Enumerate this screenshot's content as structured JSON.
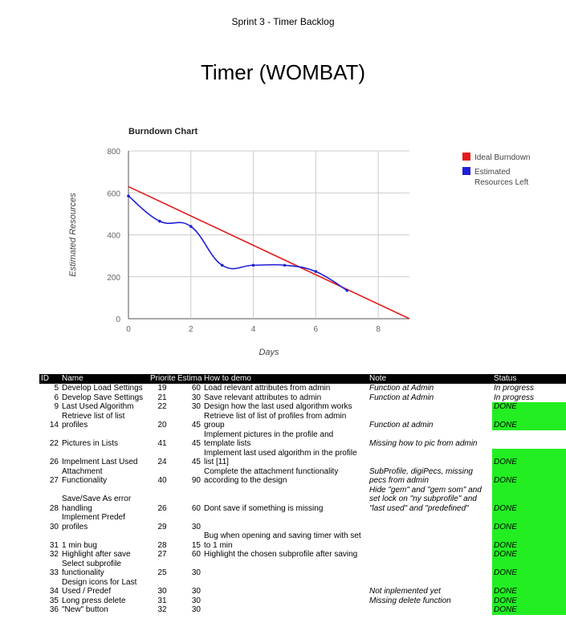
{
  "header": {
    "sheet_title": "Sprint 3 - Timer Backlog",
    "project_title": "Timer (WOMBAT)"
  },
  "chart_data": {
    "type": "line",
    "title": "Burndown Chart",
    "xlabel": "Days",
    "ylabel": "Estimated Resources",
    "xlim": [
      0,
      9
    ],
    "ylim": [
      0,
      800
    ],
    "x_ticks": [
      0,
      2,
      4,
      6,
      8
    ],
    "y_ticks": [
      0,
      200,
      400,
      600,
      800
    ],
    "grid": true,
    "legend_position": "right",
    "series": [
      {
        "name": "Ideal Burndown",
        "color": "#e31a1c",
        "x": [
          0,
          9
        ],
        "values": [
          630,
          0
        ]
      },
      {
        "name": "Estimated Resources Left",
        "color": "#1f1fd6",
        "x": [
          0,
          1,
          2,
          3,
          4,
          5,
          6,
          7
        ],
        "values": [
          585,
          465,
          440,
          255,
          255,
          255,
          225,
          135
        ]
      }
    ]
  },
  "table": {
    "columns": [
      "ID",
      "Name",
      "Priorite",
      "Estima",
      "How to demo",
      "Note",
      "Status"
    ],
    "rows": [
      {
        "id": "5",
        "name": "Develop Load Settings",
        "priority": "19",
        "estimate": "60",
        "how_to_demo": "Load relevant attributes from admin",
        "note": "Function at Admin",
        "status": "In progress",
        "done": false
      },
      {
        "id": "6",
        "name": "Develop Save Settings",
        "priority": "21",
        "estimate": "30",
        "how_to_demo": "Save relevant attributes to admin",
        "note": "Function at Admin",
        "status": "In progress",
        "done": false
      },
      {
        "id": "9",
        "name": "Last Used Algorithm",
        "priority": "22",
        "estimate": "30",
        "how_to_demo": "Design how the last used algorithm works",
        "note": "",
        "status": "DONE",
        "done": true
      },
      {
        "id": "14",
        "name": "Retrieve list of list\nprofiles",
        "priority": "20",
        "estimate": "45",
        "how_to_demo": "Retrieve list of list of profiles from admin\ngroup",
        "note": "Function at admin",
        "status": "DONE",
        "done": true
      },
      {
        "id": "22",
        "name": "Pictures in Lists",
        "priority": "41",
        "estimate": "45",
        "how_to_demo": "Implement pictures in the profile and\ntemplate lists",
        "note": "Missing how to pic from admin",
        "status": "",
        "done": false
      },
      {
        "id": "26",
        "name": "Impelment Last Used",
        "priority": "24",
        "estimate": "45",
        "how_to_demo": "Implement last used algorithm in the profile\nlist [11]",
        "note": "",
        "status": "DONE",
        "done": true
      },
      {
        "id": "27",
        "name": "Attachment\nFunctionality",
        "priority": "40",
        "estimate": "90",
        "how_to_demo": "Complete the attachment functionality\naccording to the design",
        "note": "SubProfile, digiPecs, missing\npecs from admin",
        "status": "DONE",
        "done": true
      },
      {
        "id": "28",
        "name": "Save/Save As error\nhandling",
        "priority": "26",
        "estimate": "60",
        "how_to_demo": "Dont save if something is missing",
        "note": "Hide \"gem\" and \"gem som\" and\nset lock on \"ny subprofile\" and\n\"last used\" and \"predefined\"",
        "status": "DONE",
        "done": true
      },
      {
        "id": "30",
        "name": "Implement Predef\nprofiles",
        "priority": "29",
        "estimate": "30",
        "how_to_demo": "",
        "note": "",
        "status": "DONE",
        "done": true
      },
      {
        "id": "31",
        "name": "1 min bug",
        "priority": "28",
        "estimate": "15",
        "how_to_demo": "Bug when opening and saving timer with set\nto 1 min",
        "note": "",
        "status": "DONE",
        "done": true
      },
      {
        "id": "32",
        "name": "Highlight after save",
        "priority": "27",
        "estimate": "60",
        "how_to_demo": "Highlight the chosen subprofile after saving",
        "note": "",
        "status": "DONE",
        "done": true
      },
      {
        "id": "33",
        "name": "Select subprofile\nfunctionality",
        "priority": "25",
        "estimate": "30",
        "how_to_demo": "",
        "note": "",
        "status": "DONE",
        "done": true
      },
      {
        "id": "34",
        "name": "Design icons for Last\nUsed / Predef",
        "priority": "30",
        "estimate": "30",
        "how_to_demo": "",
        "note": "Not inplemented yet",
        "status": "DONE",
        "done": true
      },
      {
        "id": "35",
        "name": "Long press delete",
        "priority": "31",
        "estimate": "30",
        "how_to_demo": "",
        "note": "Missing delete function",
        "status": "DONE",
        "done": true
      },
      {
        "id": "36",
        "name": "\"New\" button",
        "priority": "32",
        "estimate": "30",
        "how_to_demo": "",
        "note": "",
        "status": "DONE",
        "done": true
      }
    ]
  }
}
